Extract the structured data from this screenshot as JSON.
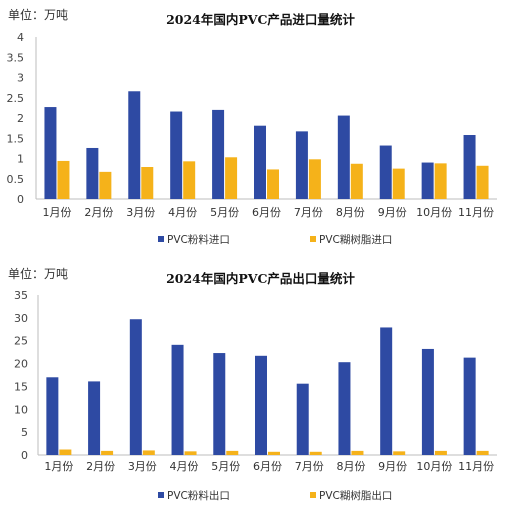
{
  "chart_data": [
    {
      "type": "bar",
      "title": "2024年国内PVC产品进口量统计",
      "unit_label": "单位：万吨",
      "categories": [
        "1月份",
        "2月份",
        "3月份",
        "4月份",
        "5月份",
        "6月份",
        "7月份",
        "8月份",
        "9月份",
        "10月份",
        "11月份"
      ],
      "ylim": [
        0,
        4
      ],
      "yticks": [
        "0",
        "0.5",
        "1",
        "1.5",
        "2",
        "2.5",
        "3",
        "3.5",
        "4"
      ],
      "grid": false,
      "legend": "bottom",
      "series": [
        {
          "name": "PVC粉料进口",
          "color": "#2e4aa3",
          "values": [
            2.27,
            1.26,
            2.66,
            2.16,
            2.2,
            1.81,
            1.67,
            2.06,
            1.32,
            0.9,
            1.58
          ]
        },
        {
          "name": "PVC糊树脂进口",
          "color": "#f5b21a",
          "values": [
            0.94,
            0.67,
            0.79,
            0.93,
            1.03,
            0.73,
            0.98,
            0.87,
            0.75,
            0.88,
            0.82
          ]
        }
      ]
    },
    {
      "type": "bar",
      "title": "2024年国内PVC产品出口量统计",
      "unit_label": "单位：万吨",
      "categories": [
        "1月份",
        "2月份",
        "3月份",
        "4月份",
        "5月份",
        "6月份",
        "7月份",
        "8月份",
        "9月份",
        "10月份",
        "11月份"
      ],
      "ylim": [
        0,
        35
      ],
      "yticks": [
        "0",
        "5",
        "10",
        "15",
        "20",
        "25",
        "30",
        "35"
      ],
      "grid": false,
      "legend": "bottom",
      "series": [
        {
          "name": "PVC粉料出口",
          "color": "#2e4aa3",
          "values": [
            17.0,
            16.1,
            29.7,
            24.1,
            22.3,
            21.7,
            15.6,
            20.3,
            27.9,
            23.2,
            21.3
          ]
        },
        {
          "name": "PVC糊树脂出口",
          "color": "#f5b21a",
          "values": [
            1.2,
            0.9,
            1.0,
            0.8,
            0.9,
            0.7,
            0.7,
            0.9,
            0.8,
            0.9,
            0.9
          ]
        }
      ]
    }
  ]
}
